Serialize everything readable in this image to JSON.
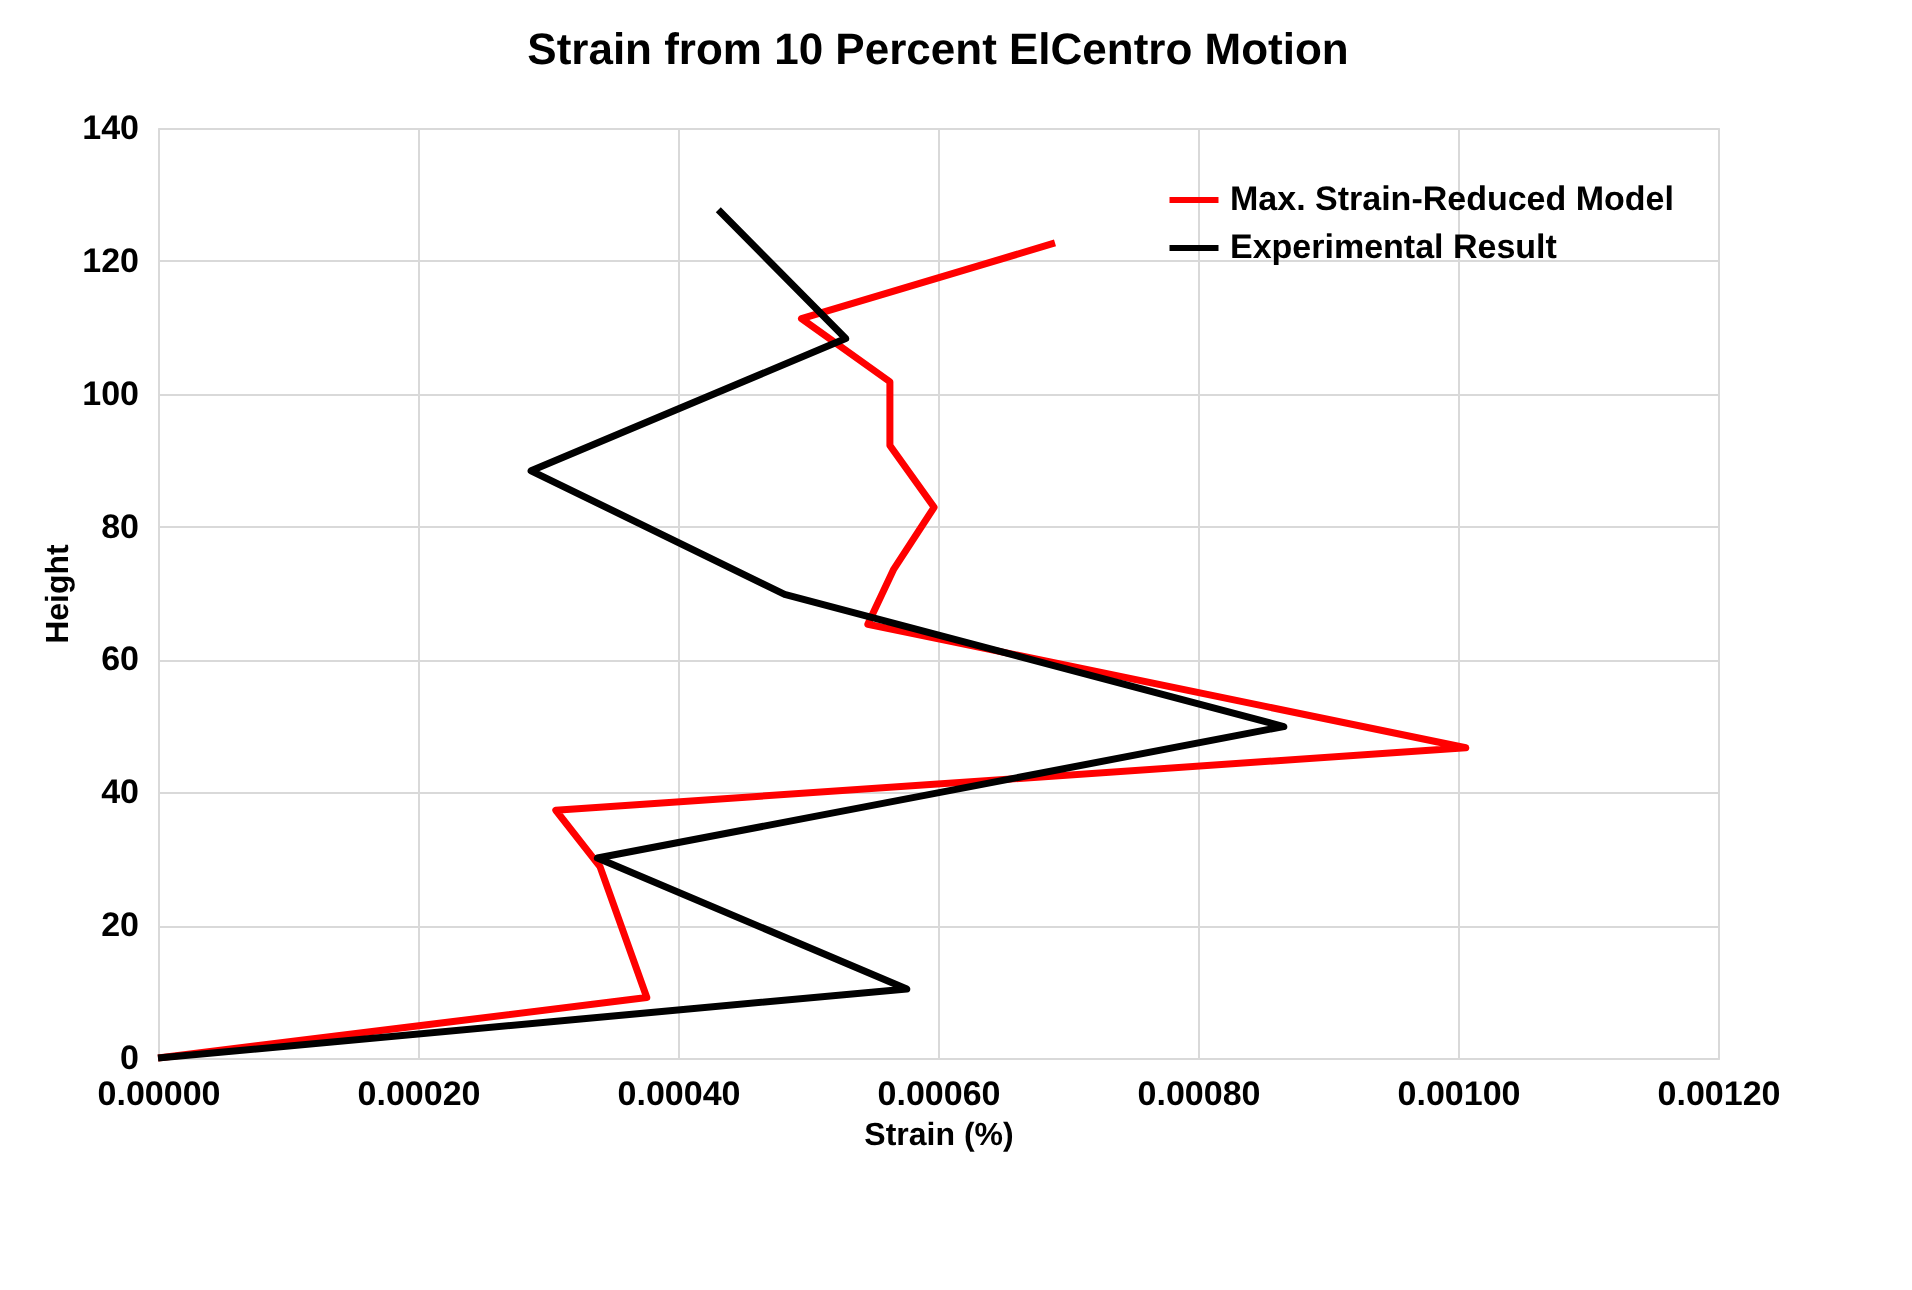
{
  "chart_data": {
    "type": "line",
    "title": "Strain from 10 Percent ElCentro Motion",
    "xlabel": "Strain (%)",
    "ylabel": "Height",
    "xlim": [
      0,
      0.0012
    ],
    "xticks": [
      {
        "value": 0,
        "label": "0.00000"
      },
      {
        "value": 0.0002,
        "label": "0.00020"
      },
      {
        "value": 0.0004,
        "label": "0.00040"
      },
      {
        "value": 0.0006,
        "label": "0.00060"
      },
      {
        "value": 0.0008,
        "label": "0.00080"
      },
      {
        "value": 0.001,
        "label": "0.00100"
      },
      {
        "value": 0.0012,
        "label": "0.00120"
      }
    ],
    "ylim": [
      0,
      140
    ],
    "yticks": [
      0,
      20,
      40,
      60,
      80,
      100,
      120,
      140
    ],
    "grid": true,
    "legend": "top right",
    "line_style": "solid",
    "series": [
      {
        "name": "Max. Strain-Reduced Model",
        "color": "#ff0000",
        "x": [
          0,
          0.000376,
          0.00034,
          0.000306,
          0.001006,
          0.000546,
          0.000566,
          0.000597,
          0.000563,
          0.000563,
          0.000495,
          0.00069
        ],
        "values": [
          0,
          9.1,
          28.8,
          37.3,
          46.7,
          65.3,
          73.6,
          82.9,
          92.2,
          101.8,
          111.3,
          122.7
        ]
      },
      {
        "name": "Experimental Result",
        "color": "#000000",
        "x": [
          0,
          0.000576,
          0.000338,
          0.000866,
          0.000482,
          0.000287,
          0.000529,
          0.000431
        ],
        "values": [
          0,
          10.4,
          30.1,
          49.9,
          69.8,
          88.4,
          108.3,
          127.7
        ]
      }
    ]
  }
}
